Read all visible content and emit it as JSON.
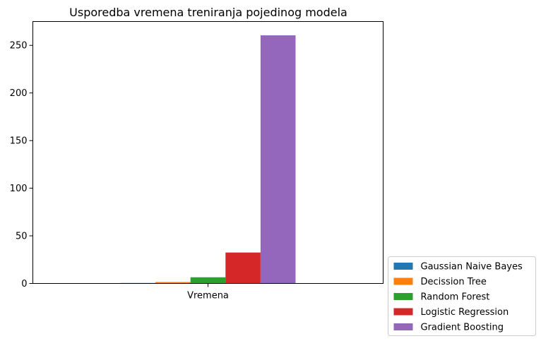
{
  "chart_data": {
    "type": "bar",
    "title": "Usporedba vremena treniranja pojedinog modela",
    "categories": [
      "Vremena"
    ],
    "series": [
      {
        "name": "Gaussian Naive Bayes",
        "values": [
          0.5
        ],
        "color": "#1f77b4"
      },
      {
        "name": "Decission Tree",
        "values": [
          1.5
        ],
        "color": "#ff7f0e"
      },
      {
        "name": "Random Forest",
        "values": [
          6.5
        ],
        "color": "#2ca02c"
      },
      {
        "name": "Logistic Regression",
        "values": [
          32.5
        ],
        "color": "#d62728"
      },
      {
        "name": "Gradient Boosting",
        "values": [
          260.5
        ],
        "color": "#9467bd"
      }
    ],
    "ylim": [
      0,
      275
    ],
    "yticks": [
      0,
      50,
      100,
      150,
      200,
      250
    ],
    "grid": false,
    "legend_position": "outside-bottom-right"
  }
}
